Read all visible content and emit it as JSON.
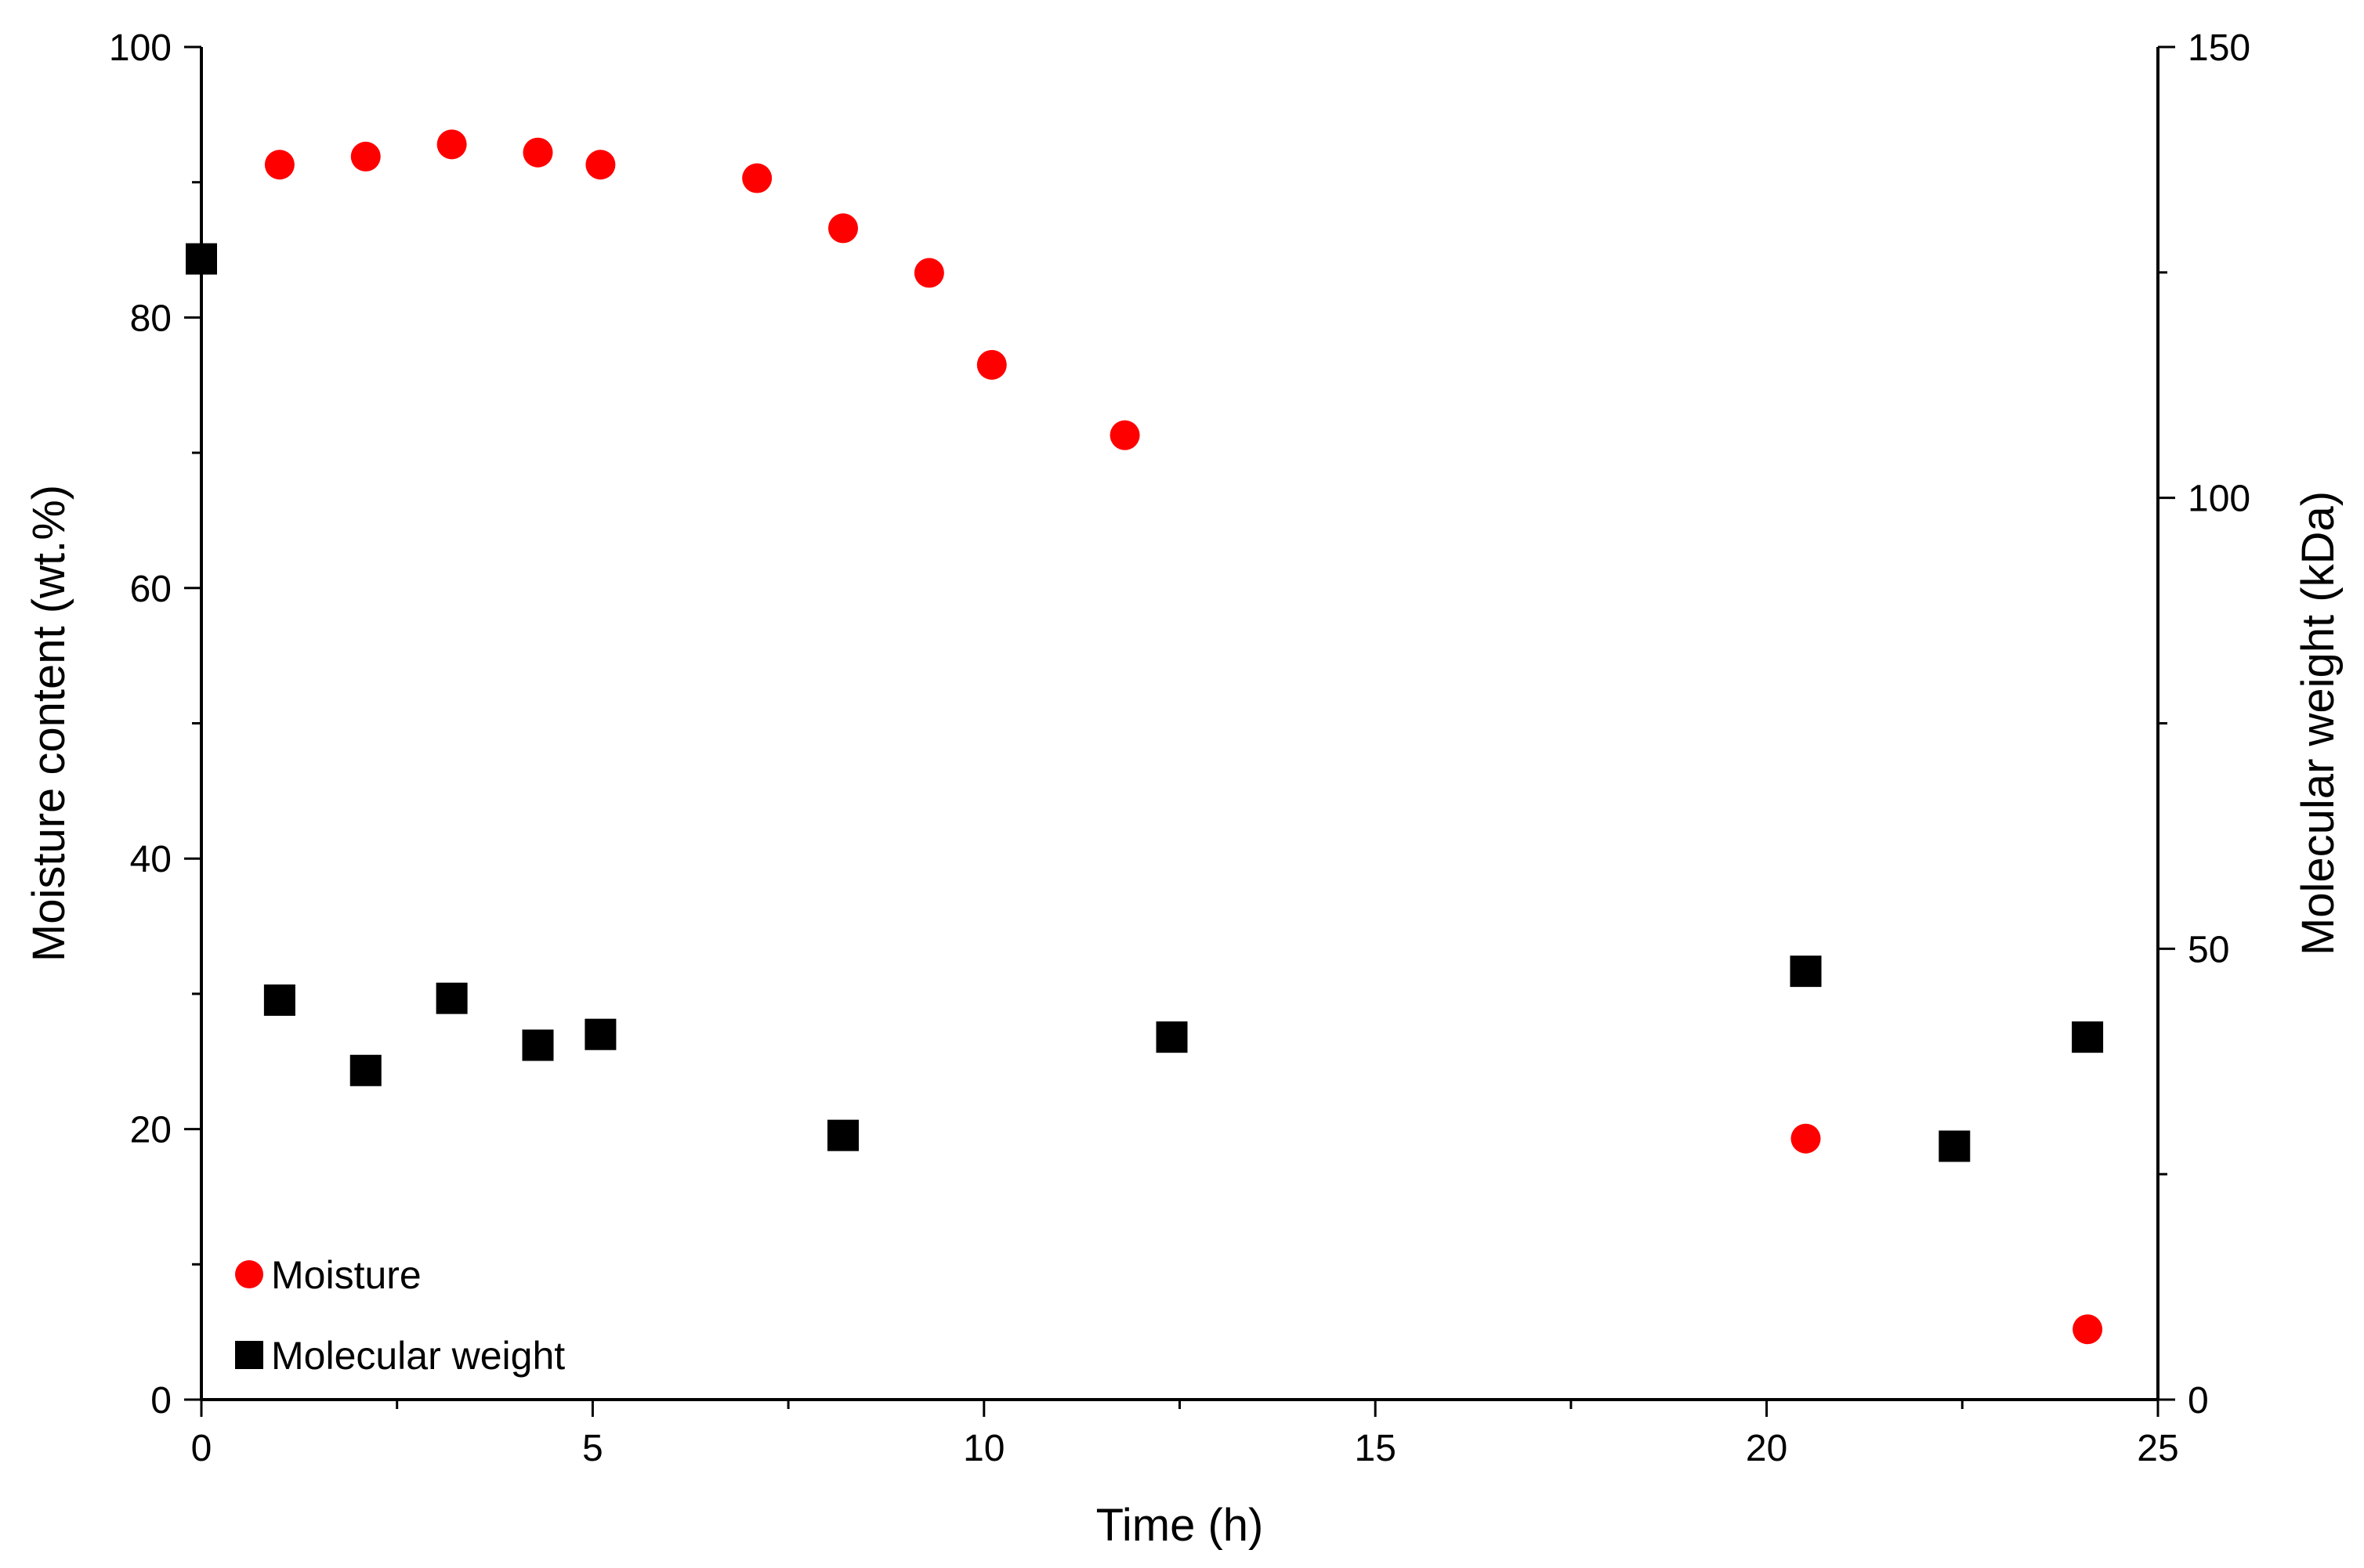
{
  "chart_data": {
    "type": "scatter",
    "xlabel": "Time (h)",
    "ylabel_left": "Moisture content (wt.%)",
    "ylabel_right": "Molecular weight (kDa)",
    "xlim": [
      0,
      25
    ],
    "ylim_left": [
      0,
      100
    ],
    "ylim_right": [
      0,
      150
    ],
    "xticks": [
      "0",
      "5",
      "10",
      "15",
      "20",
      "25"
    ],
    "yticks_left": [
      "0",
      "20",
      "40",
      "60",
      "80",
      "100"
    ],
    "yticks_right": [
      "0",
      "50",
      "100",
      "150"
    ],
    "grid": false,
    "legend_position": "bottom-left",
    "series": [
      {
        "name": "Moisture",
        "axis": "left",
        "marker": "circle",
        "color": "#ff0000",
        "x": [
          1.0,
          2.1,
          3.2,
          4.3,
          5.1,
          7.1,
          8.2,
          9.3,
          10.1,
          11.8,
          20.5,
          24.1
        ],
        "y": [
          91.3,
          91.9,
          92.8,
          92.2,
          91.3,
          90.3,
          86.6,
          83.3,
          76.5,
          71.3,
          19.3,
          5.2
        ]
      },
      {
        "name": "Molecular weight",
        "axis": "right",
        "marker": "square",
        "color": "#000000",
        "x": [
          0.0,
          1.0,
          2.1,
          3.2,
          4.3,
          5.1,
          8.2,
          12.4,
          20.5,
          22.4,
          24.1
        ],
        "y": [
          126.5,
          44.3,
          36.5,
          44.5,
          39.3,
          40.5,
          29.3,
          40.2,
          47.5,
          28.1,
          40.2
        ]
      }
    ]
  }
}
